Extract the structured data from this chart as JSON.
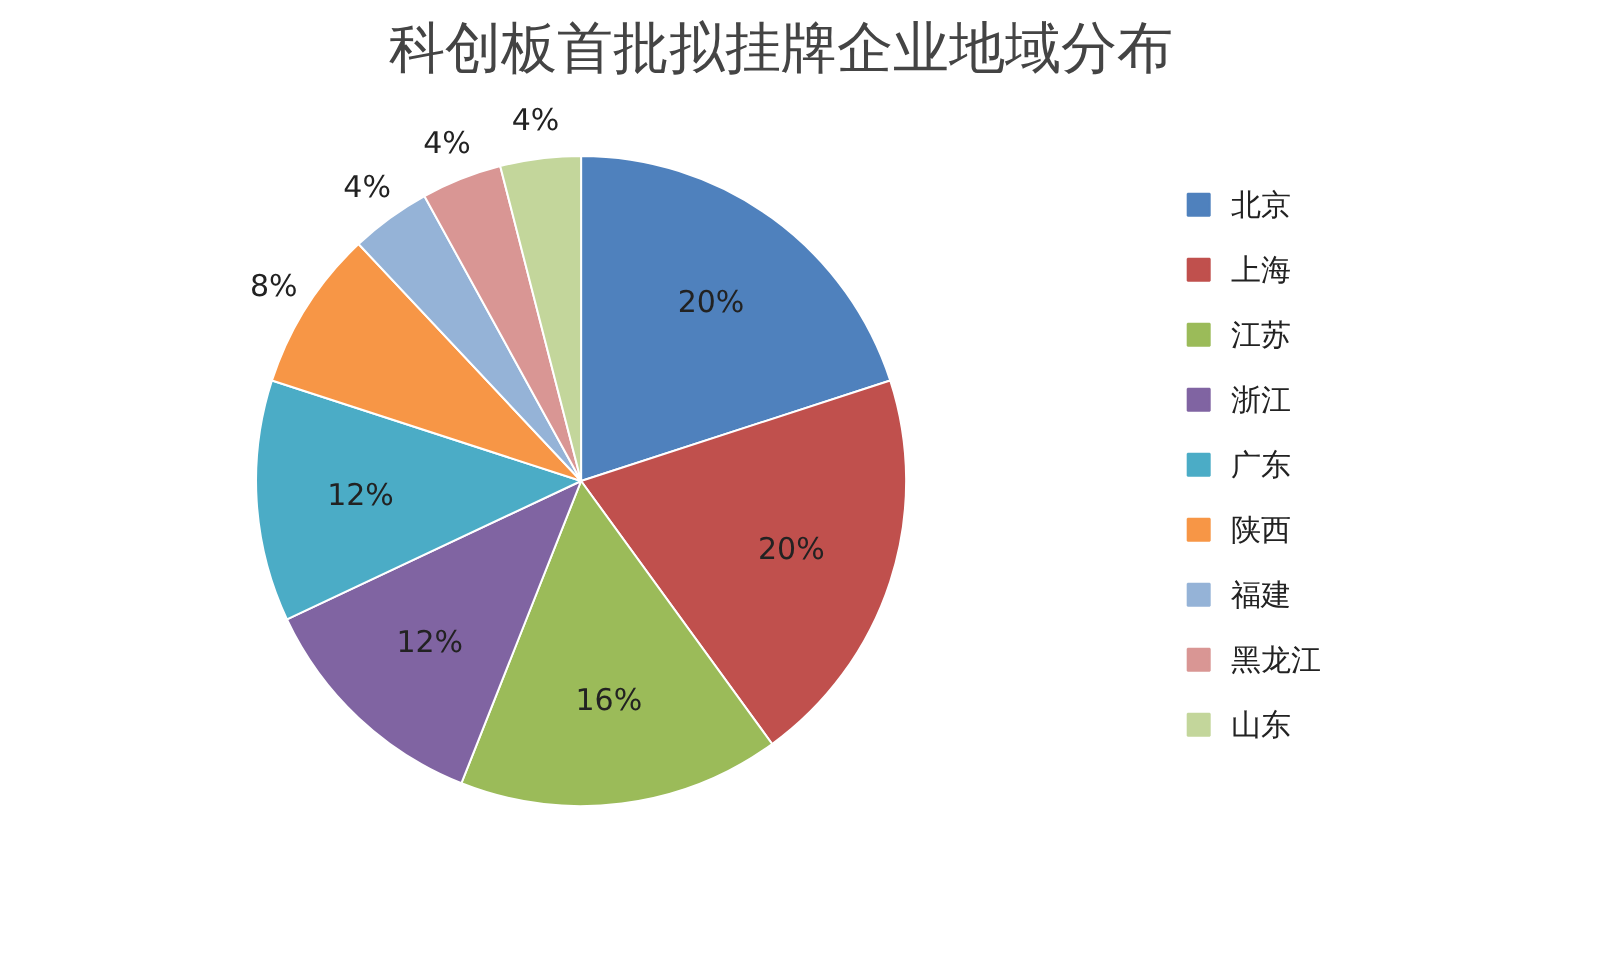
{
  "chart_data": {
    "type": "pie",
    "title": "科创板首批拟挂牌企业地域分布",
    "categories": [
      "北京",
      "上海",
      "江苏",
      "浙江",
      "广东",
      "陕西",
      "福建",
      "黑龙江",
      "山东"
    ],
    "values": [
      20,
      20,
      16,
      12,
      12,
      8,
      4,
      4,
      4
    ],
    "colors": [
      "#4f81bd",
      "#c0504d",
      "#9bbb59",
      "#8064a2",
      "#4bacc6",
      "#f79646",
      "#95b3d7",
      "#d99694",
      "#c3d69b"
    ],
    "value_labels": [
      "20%",
      "20%",
      "16%",
      "12%",
      "12%",
      "8%",
      "4%",
      "4%",
      "4%"
    ],
    "legend": "right"
  }
}
